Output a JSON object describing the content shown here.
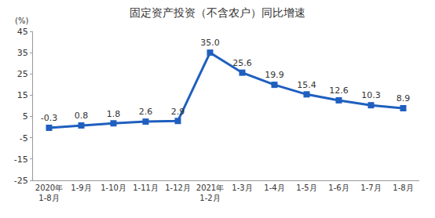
{
  "chart_data": {
    "type": "line",
    "title": "固定资产投资（不含农户）同比增速",
    "ylabel": "(%)",
    "categories": [
      "2020年\n1-8月",
      "1-9月",
      "1-10月",
      "1-11月",
      "1-12月",
      "2021年\n1-2月",
      "1-3月",
      "1-4月",
      "1-5月",
      "1-6月",
      "1-7月",
      "1-8月"
    ],
    "values": [
      -0.3,
      0.8,
      1.8,
      2.6,
      2.9,
      35.0,
      25.6,
      19.9,
      15.4,
      12.6,
      10.3,
      8.9
    ],
    "value_labels": [
      "-0.3",
      "0.8",
      "1.8",
      "2.6",
      "2.9",
      "35.0",
      "25.6",
      "19.9",
      "15.4",
      "12.6",
      "10.3",
      "8.9"
    ],
    "color": "#1f5fbf",
    "marker": "square",
    "line_style": "solid",
    "ylim": [
      -25,
      45
    ],
    "yticks": [
      -25,
      -15,
      -5,
      5,
      15,
      25,
      35,
      45
    ],
    "grid": false,
    "data_labels": true
  }
}
